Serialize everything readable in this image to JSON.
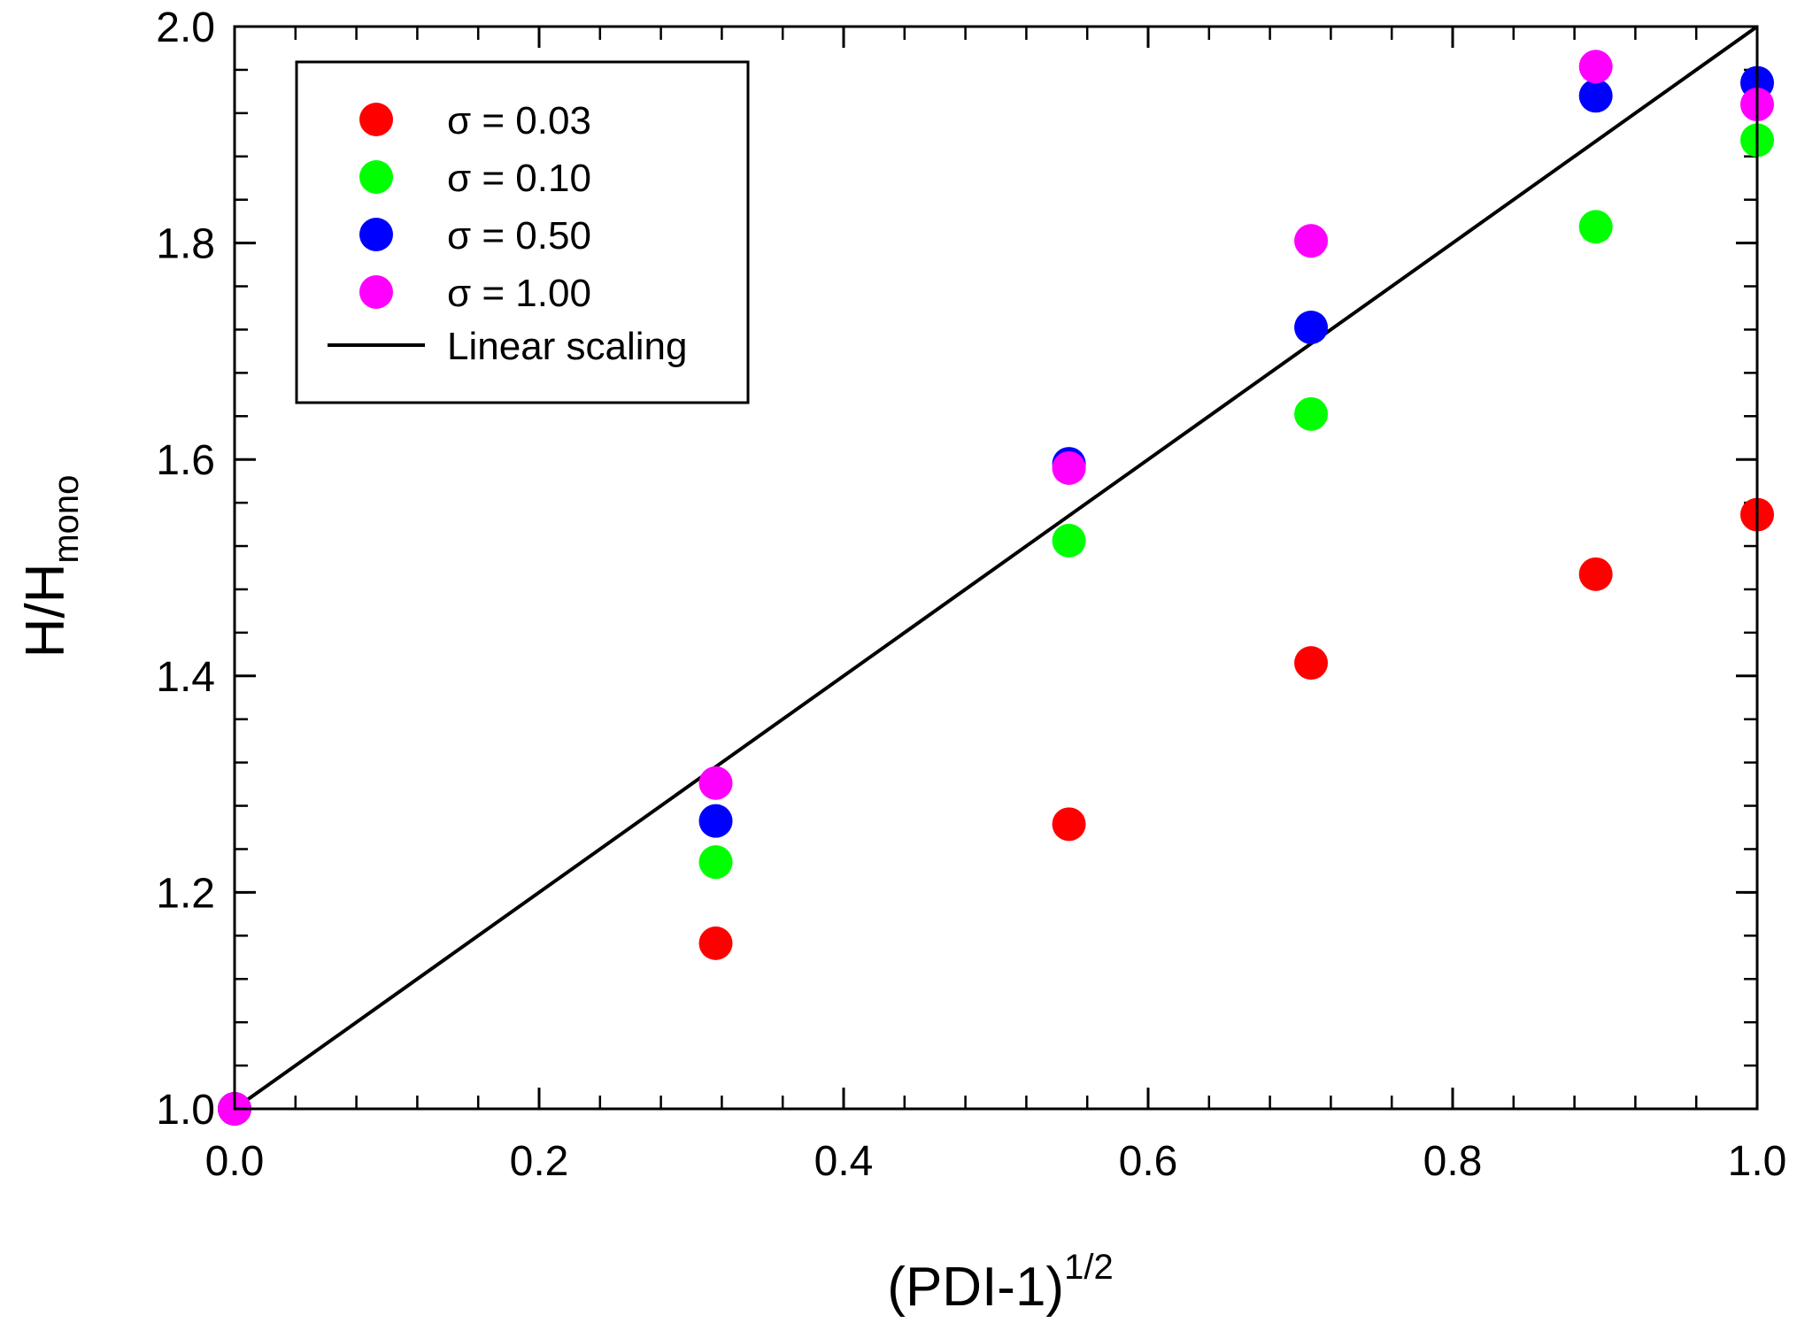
{
  "chart_data": {
    "type": "scatter",
    "title": "",
    "xlabel": {
      "base": "(PDI-1)",
      "sup": "1/2"
    },
    "ylabel": {
      "base": "H/H",
      "sub": "mono"
    },
    "xlim": [
      0.0,
      1.0
    ],
    "ylim": [
      1.0,
      2.0
    ],
    "xticks": [
      0.0,
      0.2,
      0.4,
      0.6,
      0.8,
      1.0
    ],
    "yticks": [
      1.0,
      1.2,
      1.4,
      1.6,
      1.8,
      2.0
    ],
    "xtick_labels": [
      "0.0",
      "0.2",
      "0.4",
      "0.6",
      "0.8",
      "1.0"
    ],
    "ytick_labels": [
      "1.0",
      "1.2",
      "1.4",
      "1.6",
      "1.8",
      "2.0"
    ],
    "x_minor_step": 0.04,
    "y_minor_step": 0.04,
    "grid": false,
    "legend_position": "top-left",
    "series": [
      {
        "name": "σ = 0.03",
        "color": "#ff0000",
        "marker": "circle",
        "x": [
          0.0,
          0.316,
          0.548,
          0.707,
          0.894,
          1.0
        ],
        "y": [
          1.0,
          1.153,
          1.263,
          1.412,
          1.494,
          1.549
        ]
      },
      {
        "name": "σ = 0.10",
        "color": "#00ff00",
        "marker": "circle",
        "x": [
          0.0,
          0.316,
          0.548,
          0.707,
          0.894,
          1.0
        ],
        "y": [
          1.0,
          1.228,
          1.525,
          1.642,
          1.815,
          1.895
        ]
      },
      {
        "name": "σ = 0.50",
        "color": "#0000ff",
        "marker": "circle",
        "x": [
          0.0,
          0.316,
          0.548,
          0.707,
          0.894,
          1.0
        ],
        "y": [
          1.0,
          1.266,
          1.596,
          1.722,
          1.936,
          1.948
        ]
      },
      {
        "name": "σ = 1.00",
        "color": "#ff00ff",
        "marker": "circle",
        "x": [
          0.0,
          0.316,
          0.548,
          0.707,
          0.894,
          1.0
        ],
        "y": [
          1.0,
          1.301,
          1.592,
          1.802,
          1.963,
          1.928
        ]
      }
    ],
    "reference_line": {
      "name": "Linear scaling",
      "color": "#000000",
      "x": [
        0.0,
        1.0
      ],
      "y": [
        1.0,
        2.0
      ]
    }
  }
}
